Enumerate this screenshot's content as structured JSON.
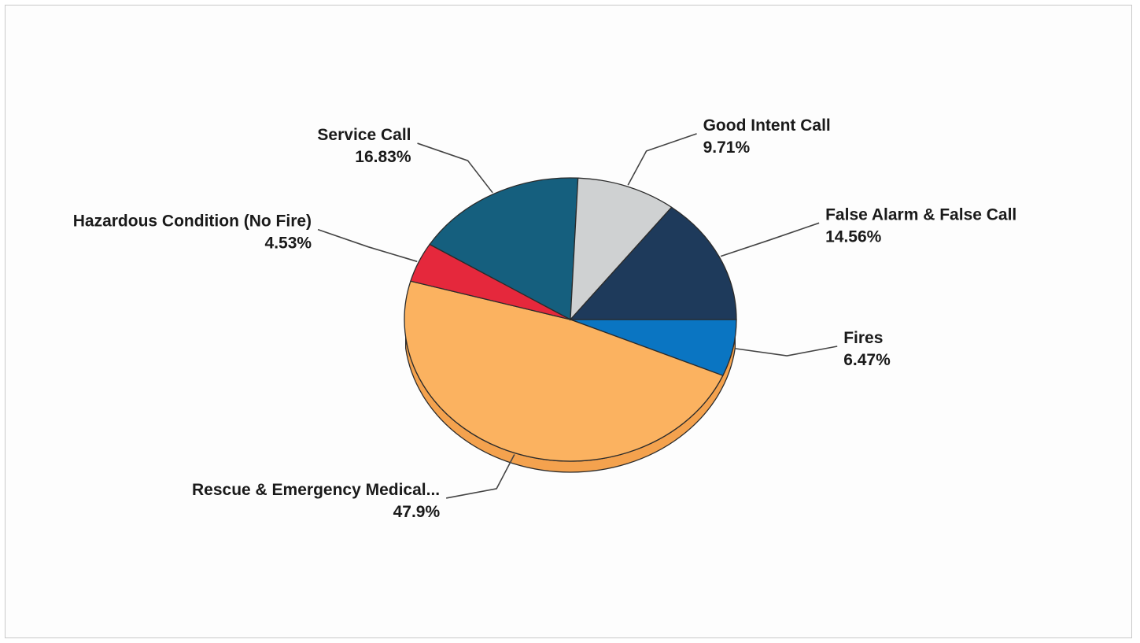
{
  "chart_data": {
    "type": "pie",
    "title": "",
    "slices": [
      {
        "label": "Fires",
        "value": 6.47,
        "value_label": "6.47%",
        "color": "#0a75c2"
      },
      {
        "label": "Rescue & Emergency Medical...",
        "value": 47.9,
        "value_label": "47.9%",
        "color": "#fbb260"
      },
      {
        "label": "Hazardous Condition (No Fire)",
        "value": 4.53,
        "value_label": "4.53%",
        "color": "#e5283c"
      },
      {
        "label": "Service Call",
        "value": 16.83,
        "value_label": "16.83%",
        "color": "#155f7e"
      },
      {
        "label": "Good Intent Call",
        "value": 9.71,
        "value_label": "9.71%",
        "color": "#cfd1d2"
      },
      {
        "label": "False Alarm & False Call",
        "value": 14.56,
        "value_label": "14.56%",
        "color": "#1e3a5b"
      }
    ],
    "depth_color": "#f4a24e",
    "legend": "none"
  }
}
